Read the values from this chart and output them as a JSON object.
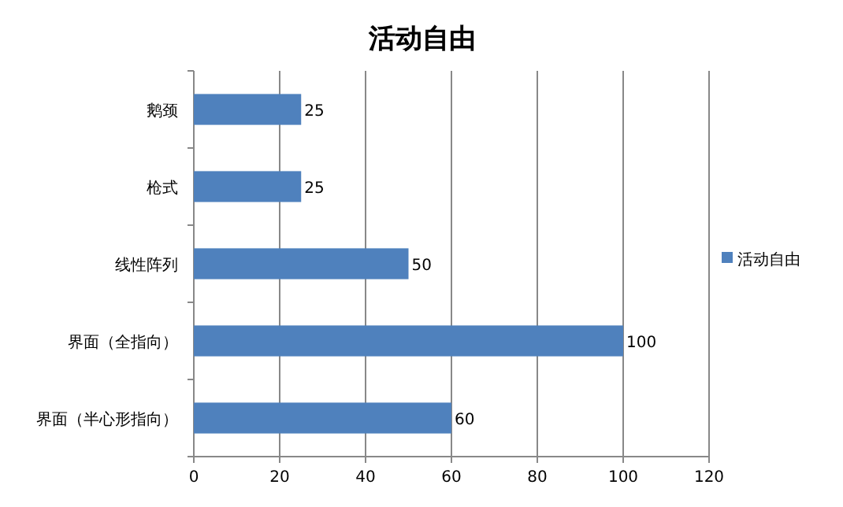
{
  "chart_data": {
    "type": "bar",
    "orientation": "horizontal",
    "title": "活动自由",
    "categories": [
      "鹅颈",
      "枪式",
      "线性阵列",
      "界面（全指向）",
      "界面（半心形指向）"
    ],
    "series": [
      {
        "name": "活动自由",
        "color": "#4f81bd",
        "values": [
          25,
          25,
          50,
          100,
          60
        ]
      }
    ],
    "xlim": [
      0,
      120
    ],
    "xticks": [
      0,
      20,
      40,
      60,
      80,
      100,
      120
    ],
    "grid": "x",
    "legend": "right",
    "data_labels": true
  }
}
